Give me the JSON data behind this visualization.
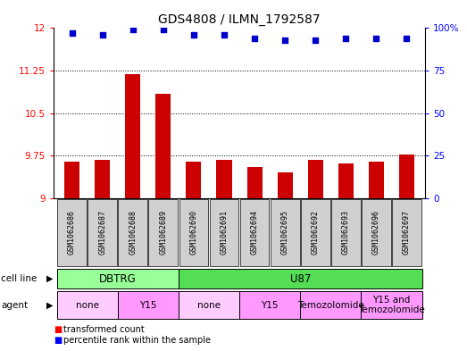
{
  "title": "GDS4808 / ILMN_1792587",
  "samples": [
    "GSM1062686",
    "GSM1062687",
    "GSM1062688",
    "GSM1062689",
    "GSM1062690",
    "GSM1062691",
    "GSM1062694",
    "GSM1062695",
    "GSM1062692",
    "GSM1062693",
    "GSM1062696",
    "GSM1062697"
  ],
  "bar_values": [
    9.65,
    9.68,
    11.19,
    10.85,
    9.65,
    9.68,
    9.55,
    9.45,
    9.68,
    9.62,
    9.65,
    9.77
  ],
  "percentile_values": [
    97,
    96,
    99,
    99,
    96,
    96,
    94,
    93,
    93,
    94,
    94,
    94
  ],
  "ylim_left": [
    9.0,
    12.0
  ],
  "ylim_right": [
    0,
    100
  ],
  "yticks_left": [
    9.0,
    9.75,
    10.5,
    11.25,
    12.0
  ],
  "yticks_right": [
    0,
    25,
    50,
    75,
    100
  ],
  "ytick_labels_left": [
    "9",
    "9.75",
    "10.5",
    "11.25",
    "12"
  ],
  "ytick_labels_right": [
    "0",
    "25",
    "50",
    "75",
    "100%"
  ],
  "bar_color": "#cc0000",
  "dot_color": "#0000cc",
  "bar_bottom": 9.0,
  "cell_line_groups": [
    {
      "label": "DBTRG",
      "start": 0,
      "end": 3,
      "color": "#99ff99"
    },
    {
      "label": "U87",
      "start": 4,
      "end": 11,
      "color": "#55dd55"
    }
  ],
  "agent_groups": [
    {
      "label": "none",
      "start": 0,
      "end": 1,
      "color": "#ffccff"
    },
    {
      "label": "Y15",
      "start": 2,
      "end": 3,
      "color": "#ff99ff"
    },
    {
      "label": "none",
      "start": 4,
      "end": 5,
      "color": "#ffccff"
    },
    {
      "label": "Y15",
      "start": 6,
      "end": 7,
      "color": "#ff99ff"
    },
    {
      "label": "Temozolomide",
      "start": 8,
      "end": 9,
      "color": "#ff99ff"
    },
    {
      "label": "Y15 and\nTemozolomide",
      "start": 10,
      "end": 11,
      "color": "#ff99ff"
    }
  ],
  "sample_box_color": "#d0d0d0",
  "grid_yticks": [
    9.75,
    10.5,
    11.25
  ]
}
